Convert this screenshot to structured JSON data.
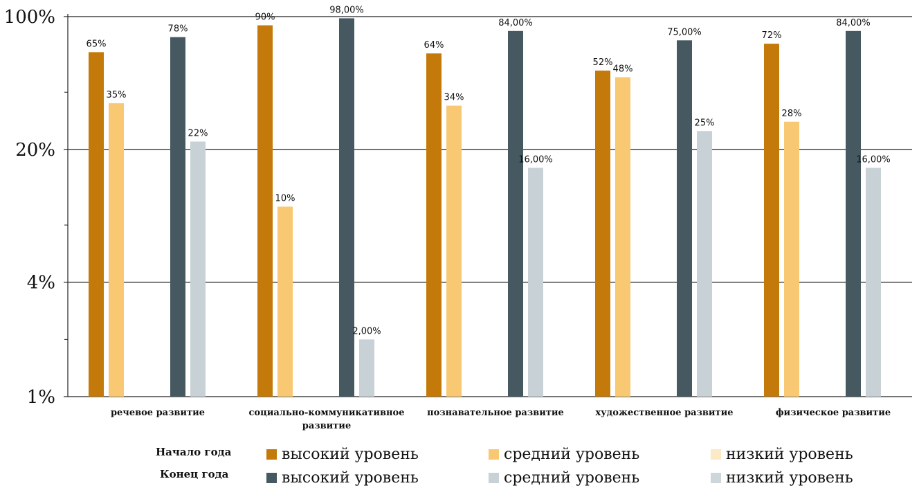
{
  "chart_data": {
    "type": "bar",
    "yscale": "log",
    "ylim": [
      0.01,
      1
    ],
    "y_ticks": [
      "100%",
      "20%",
      "4%",
      "1%"
    ],
    "y_tick_values": [
      1,
      0.2,
      0.04,
      0.01
    ],
    "grid": true,
    "categories": [
      [
        "речевое развитие"
      ],
      [
        "социально-коммуникативное",
        "развитие"
      ],
      [
        "познавательное развитие"
      ],
      [
        "художественное развитие"
      ],
      [
        "физическое развитие"
      ]
    ],
    "series": [
      {
        "group": "Начало года",
        "name": "высокий уровень",
        "color": "#C47A0A",
        "values": [
          0.65,
          0.9,
          0.64,
          0.52,
          0.72
        ],
        "labels": [
          "65%",
          "90%",
          "64%",
          "52%",
          "72%"
        ]
      },
      {
        "group": "Начало года",
        "name": "средний уровень",
        "color": "#F9C873",
        "values": [
          0.35,
          0.1,
          0.34,
          0.48,
          0.28
        ],
        "labels": [
          "35%",
          "10%",
          "34%",
          "48%",
          "28%"
        ]
      },
      {
        "group": "Начало года",
        "name": "низкий уровень",
        "color": "#FCE9C5",
        "values": [
          null,
          null,
          null,
          null,
          null
        ],
        "labels": [
          "",
          "",
          "",
          "",
          ""
        ]
      },
      {
        "group": "Конец года",
        "name": "высокий уровень",
        "color": "#465960",
        "values": [
          0.78,
          0.98,
          0.84,
          0.75,
          0.84
        ],
        "labels": [
          "78%",
          "98,00%",
          "84,00%",
          "75,00%",
          "84,00%"
        ]
      },
      {
        "group": "Конец года",
        "name": "средний уровень",
        "color": "#C8D1D6",
        "values": [
          0.22,
          0.02,
          0.16,
          0.25,
          0.16
        ],
        "labels": [
          "22%",
          "2,00%",
          "16,00%",
          "25%",
          "16,00%"
        ]
      },
      {
        "group": "Конец года",
        "name": "низкий уровень",
        "color": "#CDD6DA",
        "values": [
          null,
          null,
          null,
          null,
          null
        ],
        "labels": [
          "",
          "",
          "",
          "",
          ""
        ]
      }
    ]
  },
  "legend": {
    "row1_label": "Начало года",
    "row2_label": "Конец года",
    "row1": [
      {
        "label": "высокий уровень",
        "color": "#C47A0A"
      },
      {
        "label": "средний уровень",
        "color": "#F9C873"
      },
      {
        "label": "низкий уровень",
        "color": "#FCE9C5"
      }
    ],
    "row2": [
      {
        "label": "высокий уровень",
        "color": "#465960"
      },
      {
        "label": "средний уровень",
        "color": "#C8D1D6"
      },
      {
        "label": "низкий уровень",
        "color": "#CDD6DA"
      }
    ]
  }
}
